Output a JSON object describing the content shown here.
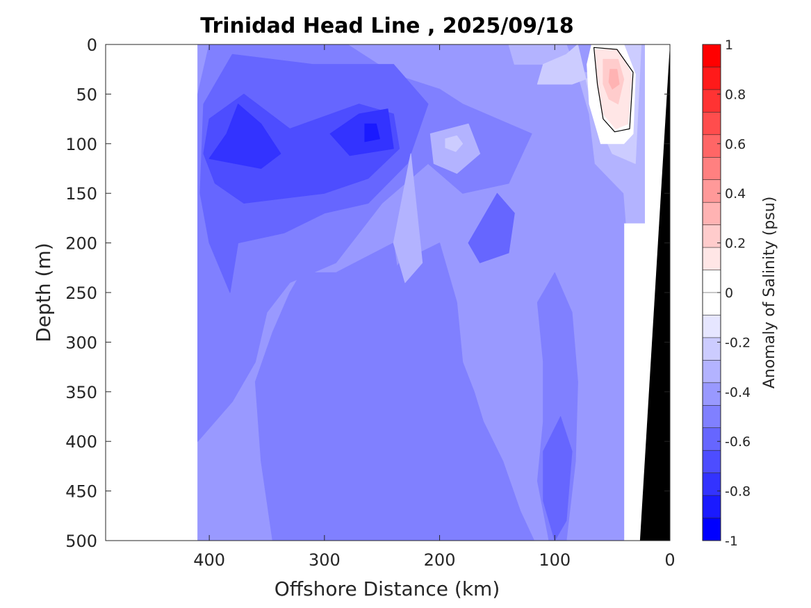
{
  "chart_data": {
    "type": "heatmap",
    "title": "Trinidad Head Line , 2025/09/18",
    "xlabel": "Offshore Distance (km)",
    "ylabel": "Depth (m)",
    "colorbar_label": "Anomaly of Salinity (psu)",
    "xlim": [
      490,
      0
    ],
    "ylim": [
      500,
      0
    ],
    "x_reversed": true,
    "y_reversed": true,
    "x_ticks": [
      400,
      300,
      200,
      100,
      0
    ],
    "x_tick_labels": [
      "400",
      "300",
      "200",
      "100",
      "0"
    ],
    "y_ticks": [
      0,
      50,
      100,
      150,
      200,
      250,
      300,
      350,
      400,
      450,
      500
    ],
    "y_tick_labels": [
      "0",
      "50",
      "100",
      "150",
      "200",
      "250",
      "300",
      "350",
      "400",
      "450",
      "500"
    ],
    "color_range": [
      -1,
      1
    ],
    "color_levels": [
      -1,
      -0.9,
      -0.8,
      -0.7,
      -0.6,
      -0.5,
      -0.4,
      -0.3,
      -0.2,
      -0.1,
      0,
      0.1,
      0.2,
      0.3,
      0.4,
      0.5,
      0.6,
      0.7,
      0.8,
      0.9,
      1
    ],
    "colorbar_ticks": [
      1,
      0.8,
      0.6,
      0.4,
      0.2,
      0,
      -0.2,
      -0.4,
      -0.6,
      -0.8,
      -1
    ],
    "colorbar_tick_labels": [
      "1",
      "0.8",
      "0.6",
      "0.4",
      "0.2",
      "0",
      "-0.2",
      "-0.4",
      "-0.6",
      "-0.8",
      "-1"
    ],
    "colormap": [
      "#0000ff",
      "#1a1aff",
      "#3333ff",
      "#4d4dff",
      "#6666ff",
      "#8080ff",
      "#9999ff",
      "#b3b3ff",
      "#ccccff",
      "#e6e6ff",
      "#ffffff",
      "#ffffff",
      "#ffe6e6",
      "#ffcccc",
      "#ffb3b3",
      "#ff9999",
      "#ff8080",
      "#ff6666",
      "#ff4d4d",
      "#ff3333",
      "#ff1a1a",
      "#ff0000"
    ],
    "data_extent_km": [
      410,
      0
    ],
    "bathymetry_color": "#000000",
    "contour_level": 0.1,
    "regions": [
      {
        "value": -0.35,
        "points": [
          [
            410,
            0
          ],
          [
            22,
            0
          ],
          [
            22,
            180
          ],
          [
            40,
            180
          ],
          [
            40,
            500
          ],
          [
            410,
            500
          ]
        ]
      },
      {
        "value": -0.45,
        "points": [
          [
            410,
            50
          ],
          [
            400,
            0
          ],
          [
            280,
            0
          ],
          [
            240,
            30
          ],
          [
            200,
            45
          ],
          [
            180,
            60
          ],
          [
            120,
            90
          ],
          [
            140,
            140
          ],
          [
            180,
            150
          ],
          [
            210,
            120
          ],
          [
            250,
            160
          ],
          [
            290,
            220
          ],
          [
            330,
            240
          ],
          [
            350,
            270
          ],
          [
            360,
            320
          ],
          [
            380,
            360
          ],
          [
            410,
            400
          ]
        ]
      },
      {
        "value": -0.45,
        "points": [
          [
            240,
            200
          ],
          [
            230,
            280
          ],
          [
            220,
            350
          ],
          [
            215,
            420
          ],
          [
            218,
            500
          ],
          [
            345,
            500
          ],
          [
            355,
            420
          ],
          [
            360,
            340
          ],
          [
            345,
            290
          ],
          [
            330,
            250
          ],
          [
            320,
            230
          ],
          [
            290,
            230
          ]
        ]
      },
      {
        "value": -0.45,
        "points": [
          [
            200,
            200
          ],
          [
            185,
            260
          ],
          [
            180,
            320
          ],
          [
            170,
            350
          ],
          [
            162,
            380
          ],
          [
            145,
            420
          ],
          [
            130,
            470
          ],
          [
            118,
            500
          ],
          [
            300,
            500
          ],
          [
            290,
            420
          ],
          [
            285,
            360
          ],
          [
            275,
            300
          ],
          [
            255,
            260
          ],
          [
            235,
            220
          ]
        ]
      },
      {
        "value": -0.45,
        "points": [
          [
            100,
            230
          ],
          [
            85,
            270
          ],
          [
            80,
            340
          ],
          [
            82,
            420
          ],
          [
            90,
            500
          ],
          [
            105,
            500
          ],
          [
            115,
            440
          ],
          [
            110,
            380
          ],
          [
            110,
            320
          ],
          [
            115,
            260
          ]
        ]
      },
      {
        "value": -0.55,
        "points": [
          [
            405,
            60
          ],
          [
            380,
            10
          ],
          [
            310,
            20
          ],
          [
            240,
            20
          ],
          [
            210,
            60
          ],
          [
            228,
            120
          ],
          [
            262,
            160
          ],
          [
            300,
            170
          ],
          [
            335,
            190
          ],
          [
            375,
            200
          ],
          [
            382,
            250
          ],
          [
            400,
            200
          ],
          [
            408,
            150
          ]
        ]
      },
      {
        "value": -0.55,
        "points": [
          [
            165,
            180
          ],
          [
            150,
            150
          ],
          [
            135,
            170
          ],
          [
            140,
            210
          ],
          [
            165,
            220
          ],
          [
            175,
            200
          ]
        ]
      },
      {
        "value": -0.55,
        "points": [
          [
            95,
            375
          ],
          [
            85,
            410
          ],
          [
            90,
            480
          ],
          [
            100,
            500
          ],
          [
            110,
            460
          ],
          [
            110,
            410
          ]
        ]
      },
      {
        "value": -0.65,
        "points": [
          [
            400,
            75
          ],
          [
            370,
            50
          ],
          [
            330,
            85
          ],
          [
            270,
            60
          ],
          [
            240,
            70
          ],
          [
            235,
            105
          ],
          [
            262,
            135
          ],
          [
            300,
            150
          ],
          [
            370,
            160
          ],
          [
            395,
            140
          ],
          [
            405,
            110
          ]
        ]
      },
      {
        "value": -0.75,
        "points": [
          [
            375,
            60
          ],
          [
            355,
            80
          ],
          [
            338,
            110
          ],
          [
            355,
            125
          ],
          [
            400,
            115
          ],
          [
            385,
            90
          ]
        ]
      },
      {
        "value": -0.75,
        "points": [
          [
            270,
            70
          ],
          [
            245,
            65
          ],
          [
            240,
            105
          ],
          [
            278,
            112
          ],
          [
            295,
            90
          ]
        ]
      },
      {
        "value": -0.85,
        "points": [
          [
            265,
            80
          ],
          [
            255,
            80
          ],
          [
            252,
            95
          ],
          [
            265,
            98
          ]
        ]
      },
      {
        "value": -0.25,
        "points": [
          [
            140,
            0
          ],
          [
            90,
            0
          ],
          [
            80,
            30
          ],
          [
            70,
            70
          ],
          [
            65,
            120
          ],
          [
            40,
            150
          ],
          [
            38,
            180
          ],
          [
            22,
            180
          ],
          [
            22,
            0
          ],
          [
            60,
            0
          ],
          [
            65,
            30
          ],
          [
            110,
            20
          ],
          [
            135,
            20
          ]
        ]
      },
      {
        "value": -0.25,
        "points": [
          [
            208,
            90
          ],
          [
            175,
            80
          ],
          [
            165,
            110
          ],
          [
            185,
            130
          ],
          [
            205,
            120
          ]
        ]
      },
      {
        "value": -0.25,
        "points": [
          [
            225,
            110
          ],
          [
            215,
            220
          ],
          [
            230,
            240
          ],
          [
            240,
            200
          ]
        ]
      },
      {
        "value": -0.15,
        "points": [
          [
            110,
            20
          ],
          [
            90,
            10
          ],
          [
            80,
            0
          ],
          [
            70,
            50
          ],
          [
            62,
            80
          ],
          [
            50,
            110
          ],
          [
            30,
            120
          ],
          [
            25,
            0
          ],
          [
            60,
            0
          ],
          [
            62,
            30
          ],
          [
            85,
            40
          ],
          [
            115,
            40
          ]
        ]
      },
      {
        "value": -0.15,
        "points": [
          [
            195,
            95
          ],
          [
            185,
            92
          ],
          [
            180,
            100
          ],
          [
            186,
            108
          ],
          [
            195,
            104
          ]
        ]
      },
      {
        "value": 0.05,
        "points": [
          [
            68,
            0
          ],
          [
            40,
            0
          ],
          [
            30,
            30
          ],
          [
            32,
            90
          ],
          [
            40,
            100
          ],
          [
            60,
            100
          ],
          [
            70,
            60
          ],
          [
            72,
            20
          ]
        ]
      },
      {
        "value": 0.15,
        "points": [
          [
            65,
            5
          ],
          [
            45,
            5
          ],
          [
            33,
            30
          ],
          [
            36,
            80
          ],
          [
            47,
            85
          ],
          [
            58,
            70
          ],
          [
            63,
            40
          ]
        ]
      },
      {
        "value": 0.25,
        "points": [
          [
            58,
            15
          ],
          [
            45,
            15
          ],
          [
            40,
            35
          ],
          [
            45,
            60
          ],
          [
            53,
            55
          ],
          [
            58,
            40
          ]
        ]
      },
      {
        "value": 0.35,
        "points": [
          [
            52,
            25
          ],
          [
            46,
            25
          ],
          [
            44,
            40
          ],
          [
            50,
            45
          ],
          [
            53,
            38
          ]
        ]
      }
    ],
    "contour_line": [
      [
        66,
        3
      ],
      [
        46,
        5
      ],
      [
        32,
        28
      ],
      [
        35,
        85
      ],
      [
        48,
        88
      ],
      [
        58,
        75
      ],
      [
        63,
        40
      ]
    ],
    "bathymetry": [
      [
        0,
        0
      ],
      [
        26,
        500
      ],
      [
        0,
        500
      ]
    ]
  }
}
